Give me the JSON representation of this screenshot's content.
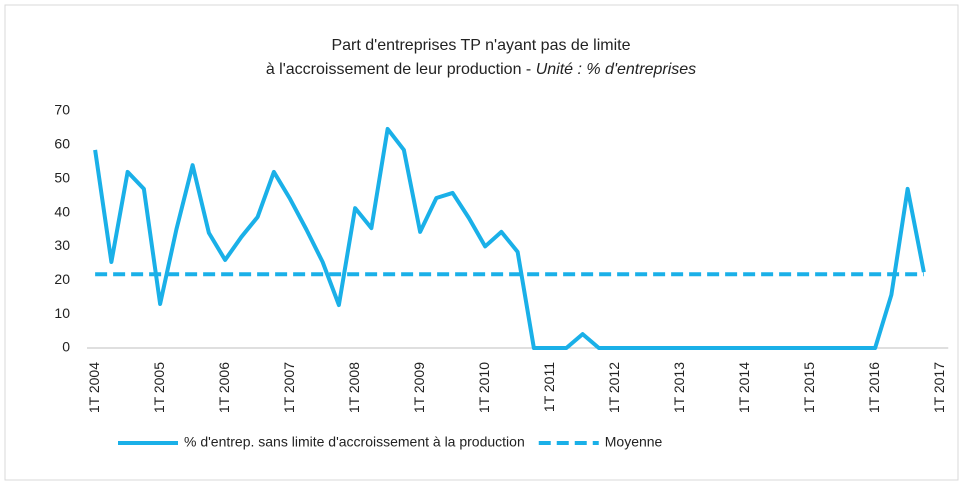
{
  "chart_data": {
    "type": "line",
    "title": [
      "Part d'entreprises TP n'ayant pas de limite",
      "à l'accroissement de leur production -"
    ],
    "subtitle": "Unité : % d'entreprises",
    "categories": [
      "1T 2004",
      null,
      null,
      null,
      "1T 2005",
      null,
      null,
      null,
      "1T 2006",
      null,
      null,
      null,
      "1T 2007",
      null,
      null,
      null,
      "1T 2008",
      null,
      null,
      null,
      "1T 2009",
      null,
      null,
      null,
      "1T 2010",
      null,
      null,
      null,
      "1T 2011",
      null,
      null,
      null,
      "1T 2012",
      null,
      null,
      null,
      "1T 2013",
      null,
      null,
      null,
      "1T 2014",
      null,
      null,
      null,
      "1T 2015",
      null,
      null,
      null,
      "1T 2016",
      null,
      null,
      null,
      "1T 2017"
    ],
    "series": [
      {
        "name": "% d'entrep. sans limite d'accroissement à la production",
        "color": "#1ab0e8",
        "dash": false,
        "values": [
          58.5,
          25.4,
          52,
          47,
          13,
          35,
          54,
          34,
          26,
          32.8,
          38.7,
          52,
          44,
          35,
          25.4,
          12.7,
          41.3,
          35.4,
          64.7,
          58.5,
          34.3,
          44.3,
          45.8,
          38.4,
          30,
          34.3,
          28.4,
          0,
          0,
          0,
          4.1,
          0,
          0,
          0,
          0,
          0,
          0,
          0,
          0,
          0,
          0,
          0,
          0,
          0,
          0,
          0,
          0,
          0,
          0,
          15.7,
          47,
          22.4,
          null
        ]
      },
      {
        "name": "Moyenne",
        "color": "#1ab0e8",
        "dash": true,
        "values": [
          21.8,
          21.8,
          21.8,
          21.8,
          21.8,
          21.8,
          21.8,
          21.8,
          21.8,
          21.8,
          21.8,
          21.8,
          21.8,
          21.8,
          21.8,
          21.8,
          21.8,
          21.8,
          21.8,
          21.8,
          21.8,
          21.8,
          21.8,
          21.8,
          21.8,
          21.8,
          21.8,
          21.8,
          21.8,
          21.8,
          21.8,
          21.8,
          21.8,
          21.8,
          21.8,
          21.8,
          21.8,
          21.8,
          21.8,
          21.8,
          21.8,
          21.8,
          21.8,
          21.8,
          21.8,
          21.8,
          21.8,
          21.8,
          21.8,
          21.8,
          21.8,
          21.8,
          null
        ]
      }
    ],
    "ylim": [
      0,
      70
    ],
    "yticks": [
      0,
      10,
      20,
      30,
      40,
      50,
      60,
      70
    ],
    "grid": false,
    "legend": "bottom"
  }
}
